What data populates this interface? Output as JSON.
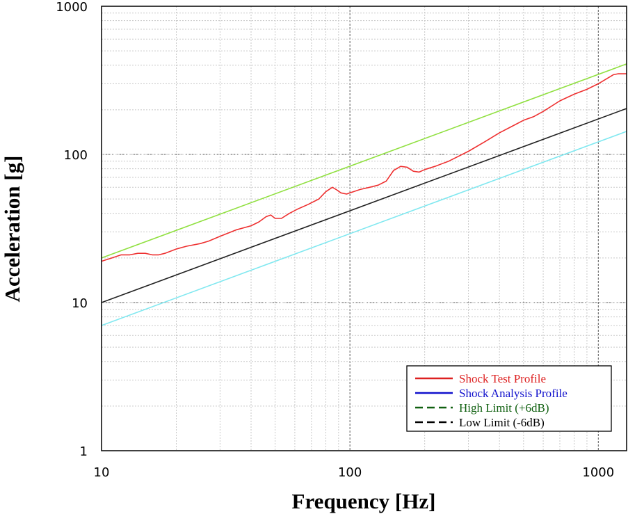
{
  "chart_data": {
    "type": "line",
    "title": "",
    "xlabel": "Frequency [Hz]",
    "ylabel": "Acceleration [g]",
    "x_scale": "log",
    "y_scale": "log",
    "xlim": [
      10,
      1300
    ],
    "ylim": [
      1,
      1000
    ],
    "x_ticks": [
      10,
      100,
      1000
    ],
    "x_tick_labels": [
      "10",
      "100",
      "1000"
    ],
    "y_ticks": [
      1,
      10,
      100,
      1000
    ],
    "y_tick_labels": [
      "1",
      "10",
      "100",
      "1000"
    ],
    "grid": true,
    "legend_position": "bottom-right",
    "legend": [
      {
        "label": "Shock Test Profile",
        "color": "#dd2020",
        "dash": "solid"
      },
      {
        "label": "Shock Analysis Profile",
        "color": "#1010cc",
        "dash": "solid"
      },
      {
        "label": "High Limit (+6dB)",
        "color": "#106010",
        "dash": "dashed"
      },
      {
        "label": "Low Limit (-6dB)",
        "color": "#000000",
        "dash": "dashed"
      }
    ],
    "series": [
      {
        "color": "#ee3030",
        "x": [
          10,
          11,
          12,
          13,
          14,
          15,
          16,
          17,
          18,
          20,
          22,
          25,
          27,
          30,
          35,
          40,
          43,
          46,
          48,
          50,
          53,
          57,
          62,
          68,
          75,
          80,
          85,
          88,
          92,
          97,
          100,
          110,
          120,
          130,
          140,
          150,
          160,
          170,
          180,
          190,
          200,
          220,
          250,
          300,
          350,
          400,
          450,
          500,
          550,
          600,
          700,
          800,
          900,
          1000,
          1100,
          1150,
          1200,
          1300
        ],
        "y": [
          19,
          20,
          21,
          21,
          21.5,
          21.5,
          21,
          21,
          21.5,
          23,
          24,
          25,
          26,
          28,
          31,
          33,
          35,
          38,
          39,
          37,
          37,
          40,
          43,
          46,
          50,
          56,
          60,
          58,
          55,
          54,
          55,
          58,
          60,
          62,
          66,
          78,
          83,
          82,
          77,
          76,
          79,
          83,
          90,
          105,
          122,
          140,
          155,
          170,
          180,
          195,
          230,
          255,
          275,
          300,
          330,
          345,
          350,
          350
        ]
      },
      {
        "color": "#90e040",
        "x": [
          10,
          1300
        ],
        "y": [
          20,
          408
        ]
      },
      {
        "color": "#222222",
        "x": [
          10,
          1300
        ],
        "y": [
          10,
          204
        ]
      },
      {
        "color": "#80e8f0",
        "x": [
          10,
          1300
        ],
        "y": [
          7,
          143
        ]
      }
    ]
  }
}
